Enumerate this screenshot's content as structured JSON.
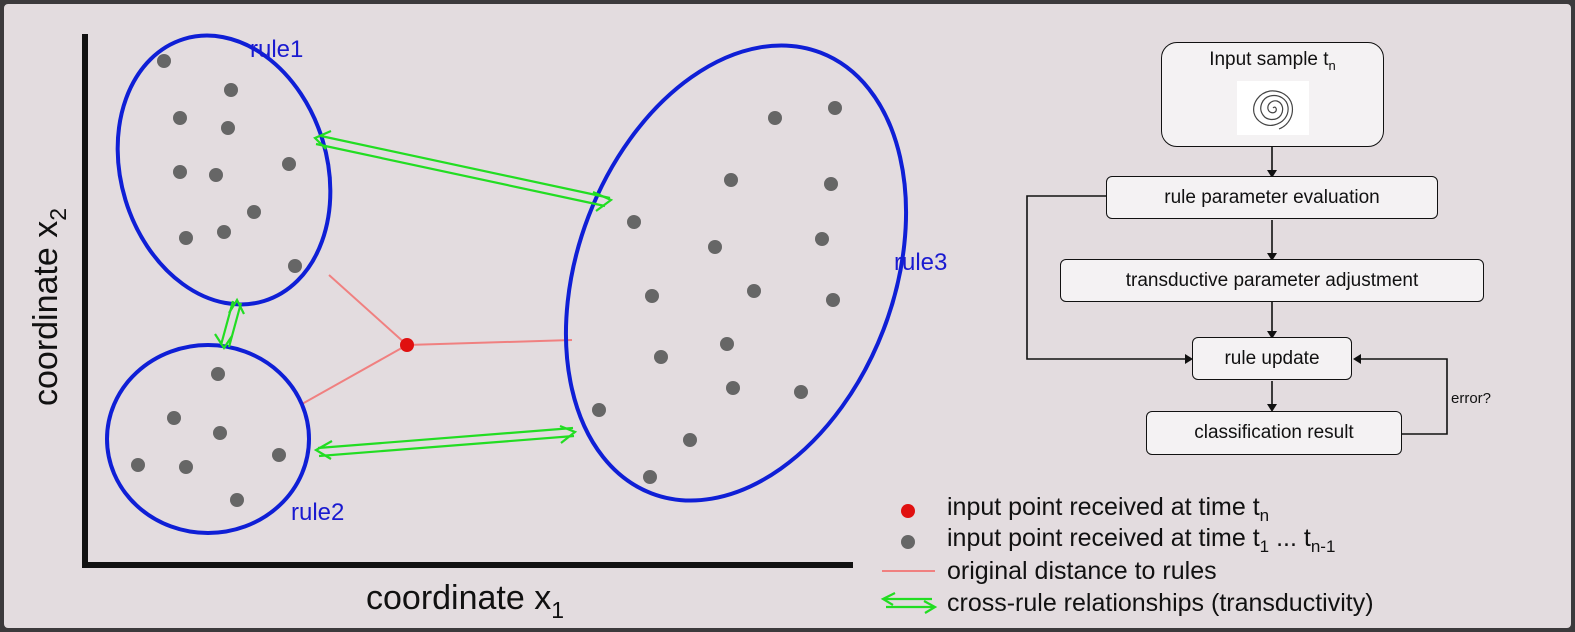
{
  "axes": {
    "x_label": "coordinate x",
    "x_sub": "1",
    "y_label": "coordinate x",
    "y_sub": "2"
  },
  "rules": {
    "rule1": "rule1",
    "rule2": "rule2",
    "rule3": "rule3"
  },
  "flowchart": {
    "input_title": "Input sample t",
    "input_sub": "n",
    "step1": "rule parameter evaluation",
    "step2": "transductive parameter adjustment",
    "step3": "rule update",
    "step4": "classification result",
    "loop_label": "error?"
  },
  "legend": {
    "red_main": "input point received at time t",
    "red_sub": "n",
    "gray_main": "input point received at time t",
    "gray_sub1": "1",
    "gray_mid": " ... t",
    "gray_sub2": "n-1",
    "line_label": "original distance to rules",
    "arrow_label": "cross-rule relationships (transductivity)"
  },
  "colors": {
    "rule_outline": "#0f1fd6",
    "rule_label": "#1a1ad0",
    "sample_point": "#666666",
    "new_point": "#e01010",
    "distance_line": "#f08080",
    "relation_arrow": "#22dd22",
    "background": "#e3dcdf",
    "border": "#3c3a3c"
  }
}
